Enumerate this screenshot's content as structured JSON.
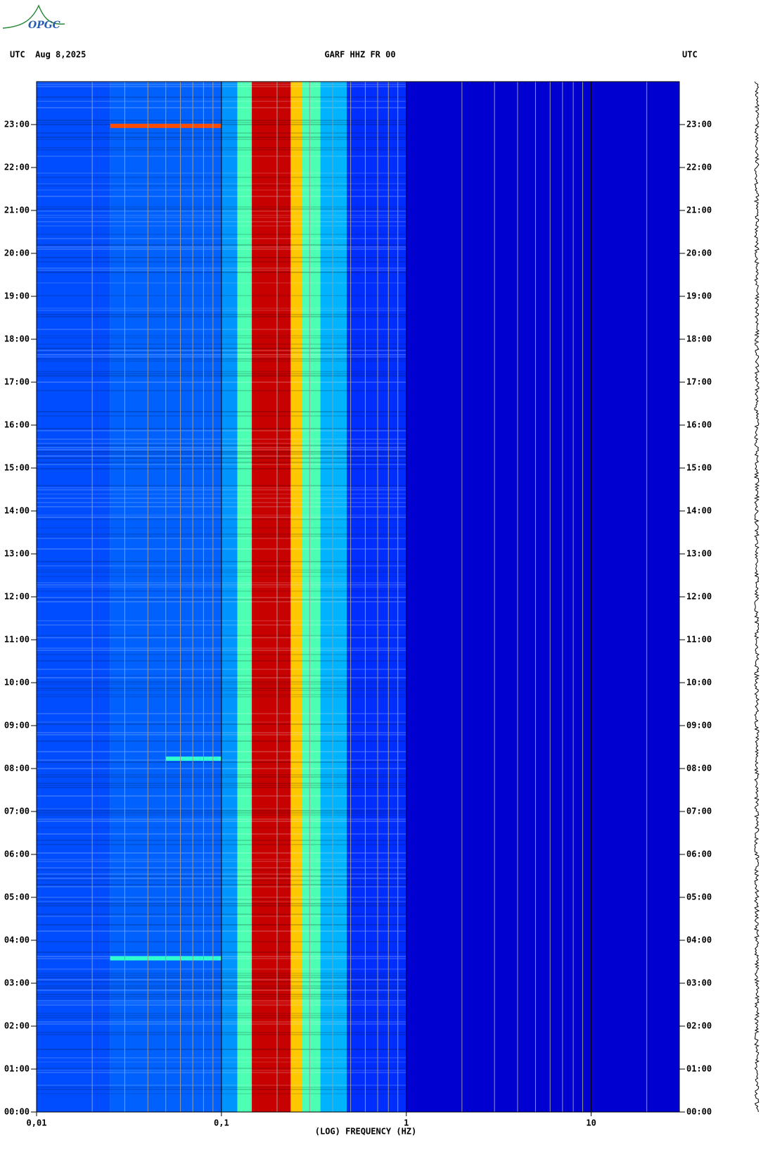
{
  "logo": "OPGC",
  "chart_data": {
    "type": "spectrogram",
    "title": "GARF HHZ FR 00",
    "left_label": "UTC  Aug 8,2025",
    "right_label": "UTC",
    "x_label": "(LOG) FREQUENCY (HZ)",
    "log_x": true,
    "colormap": "jet",
    "xlim": [
      0.01,
      30
    ],
    "xticks": [
      {
        "value": 0.01,
        "label": "0,01"
      },
      {
        "value": 0.1,
        "label": "0,1"
      },
      {
        "value": 1,
        "label": "1"
      },
      {
        "value": 10,
        "label": "10"
      }
    ],
    "xminor": [
      0.02,
      0.03,
      0.04,
      0.05,
      0.06,
      0.07,
      0.08,
      0.09,
      0.2,
      0.3,
      0.4,
      0.5,
      0.6,
      0.7,
      0.8,
      0.9,
      2,
      3,
      4,
      5,
      6,
      7,
      8,
      9,
      20
    ],
    "ylim": [
      0,
      24
    ],
    "yticks": [
      {
        "value": 0,
        "label": "00:00"
      },
      {
        "value": 1,
        "label": "01:00"
      },
      {
        "value": 2,
        "label": "02:00"
      },
      {
        "value": 3,
        "label": "03:00"
      },
      {
        "value": 4,
        "label": "04:00"
      },
      {
        "value": 5,
        "label": "05:00"
      },
      {
        "value": 6,
        "label": "06:00"
      },
      {
        "value": 7,
        "label": "07:00"
      },
      {
        "value": 8,
        "label": "08:00"
      },
      {
        "value": 9,
        "label": "09:00"
      },
      {
        "value": 10,
        "label": "10:00"
      },
      {
        "value": 11,
        "label": "11:00"
      },
      {
        "value": 12,
        "label": "12:00"
      },
      {
        "value": 13,
        "label": "13:00"
      },
      {
        "value": 14,
        "label": "14:00"
      },
      {
        "value": 15,
        "label": "15:00"
      },
      {
        "value": 16,
        "label": "16:00"
      },
      {
        "value": 17,
        "label": "17:00"
      },
      {
        "value": 18,
        "label": "18:00"
      },
      {
        "value": 19,
        "label": "19:00"
      },
      {
        "value": 20,
        "label": "20:00"
      },
      {
        "value": 21,
        "label": "21:00"
      },
      {
        "value": 22,
        "label": "22:00"
      },
      {
        "value": 23,
        "label": "23:00"
      }
    ],
    "band_edges": [
      0.01,
      0.025,
      0.1,
      0.122,
      0.146,
      0.237,
      0.273,
      0.343,
      0.476,
      1,
      30
    ],
    "band_levels": [
      0.2,
      0.22,
      0.27,
      0.45,
      0.93,
      0.68,
      0.45,
      0.3,
      0.17,
      0.08
    ],
    "events": [
      {
        "time": 22.97,
        "fmin": 0.025,
        "fmax": 0.1,
        "level": 0.8
      },
      {
        "time": 8.23,
        "fmin": 0.05,
        "fmax": 0.1,
        "level": 0.42
      },
      {
        "time": 3.58,
        "fmin": 0.025,
        "fmax": 0.1,
        "level": 0.42
      }
    ]
  }
}
